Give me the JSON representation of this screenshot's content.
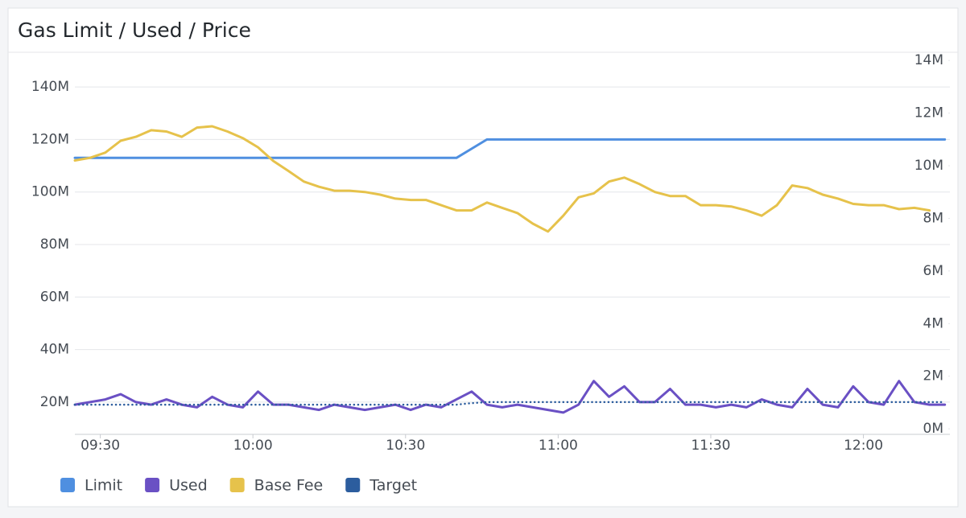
{
  "chart_data": {
    "type": "line",
    "title": "Gas Limit / Used / Price",
    "x": [
      "09:25",
      "09:28",
      "09:31",
      "09:34",
      "09:37",
      "09:40",
      "09:43",
      "09:46",
      "09:49",
      "09:52",
      "09:55",
      "09:58",
      "10:01",
      "10:04",
      "10:07",
      "10:10",
      "10:13",
      "10:16",
      "10:19",
      "10:22",
      "10:25",
      "10:28",
      "10:31",
      "10:34",
      "10:37",
      "10:40",
      "10:43",
      "10:46",
      "10:49",
      "10:52",
      "10:55",
      "10:58",
      "11:01",
      "11:04",
      "11:07",
      "11:10",
      "11:13",
      "11:16",
      "11:19",
      "11:22",
      "11:25",
      "11:28",
      "11:31",
      "11:34",
      "11:37",
      "11:40",
      "11:43",
      "11:46",
      "11:49",
      "11:52",
      "11:55",
      "11:58",
      "12:01",
      "12:04",
      "12:07",
      "12:10",
      "12:13",
      "12:16"
    ],
    "xlim": [
      "09:25",
      "12:17"
    ],
    "xticks": [
      "09:30",
      "10:00",
      "10:30",
      "11:00",
      "11:30",
      "12:00"
    ],
    "ylim": [
      7.7,
      152.3
    ],
    "yticks": [
      {
        "value": 20,
        "label": "20M"
      },
      {
        "value": 40,
        "label": "40M"
      },
      {
        "value": 60,
        "label": "60M"
      },
      {
        "value": 80,
        "label": "80M"
      },
      {
        "value": 100,
        "label": "100M"
      },
      {
        "value": 120,
        "label": "120M"
      },
      {
        "value": 140,
        "label": "140M"
      }
    ],
    "y2lim": [
      -0.21,
      14.22
    ],
    "y2ticks": [
      {
        "value": 0,
        "label": "0M"
      },
      {
        "value": 2,
        "label": "2M"
      },
      {
        "value": 4,
        "label": "4M"
      },
      {
        "value": 6,
        "label": "6M"
      },
      {
        "value": 8,
        "label": "8M"
      },
      {
        "value": 10,
        "label": "10M"
      },
      {
        "value": 12,
        "label": "12M"
      },
      {
        "value": 14,
        "label": "14M"
      }
    ],
    "grid": true,
    "legend": "bottom-left",
    "series": [
      {
        "name": "Limit",
        "color": "#4f8fe0",
        "values": [
          113,
          113,
          113,
          113,
          113,
          113,
          113,
          113,
          113,
          113,
          113,
          113,
          113,
          113,
          113,
          113,
          113,
          113,
          113,
          113,
          113,
          113,
          113,
          113,
          113,
          113,
          116.5,
          120,
          120,
          120,
          120,
          120,
          120,
          120,
          120,
          120,
          120,
          120,
          120,
          120,
          120,
          120,
          120,
          120,
          120,
          120,
          120,
          120,
          120,
          120,
          120,
          120,
          120,
          120,
          120,
          120,
          120,
          120
        ]
      },
      {
        "name": "Used",
        "color": "#6a50c4",
        "values": [
          19,
          20,
          21,
          23,
          20,
          19,
          21,
          19,
          18,
          22,
          19,
          18,
          24,
          19,
          19,
          18,
          17,
          19,
          18,
          17,
          18,
          19,
          17,
          19,
          18,
          21,
          24,
          19,
          18,
          19,
          18,
          17,
          16,
          19,
          28,
          22,
          26,
          20,
          20,
          25,
          19,
          19,
          18,
          19,
          18,
          21,
          19,
          18,
          25,
          19,
          18,
          26,
          20,
          19,
          28,
          20,
          19,
          19
        ]
      },
      {
        "name": "Base Fee",
        "color": "#e6c24b",
        "axis": "y2",
        "values": [
          10.2,
          10.3,
          10.5,
          10.95,
          11.1,
          11.35,
          11.3,
          11.1,
          11.45,
          11.5,
          11.3,
          11.05,
          10.7,
          10.18,
          9.8,
          9.4,
          9.2,
          9.05,
          9.05,
          9.0,
          8.9,
          8.75,
          8.7,
          8.7,
          8.5,
          8.3,
          8.3,
          8.6,
          8.4,
          8.2,
          7.8,
          7.5,
          8.1,
          8.8,
          8.95,
          9.4,
          9.55,
          9.3,
          9.0,
          8.85,
          8.85,
          8.5,
          8.5,
          8.45,
          8.3,
          8.1,
          8.5,
          9.25,
          9.15,
          8.9,
          8.75,
          8.55,
          8.5,
          8.5,
          8.35,
          8.4,
          8.3,
          null
        ]
      },
      {
        "name": "Target",
        "color": "#2c5d9e",
        "style": "dotted",
        "values": [
          19,
          19,
          19,
          19,
          19,
          19,
          19,
          19,
          19,
          19,
          19,
          19,
          19,
          19,
          19,
          19,
          19,
          19,
          19,
          19,
          19,
          19,
          19,
          19,
          19,
          19,
          19.6,
          20,
          20,
          20,
          20,
          20,
          20,
          20,
          20,
          20,
          20,
          20,
          20,
          20,
          20,
          20,
          20,
          20,
          20,
          20,
          20,
          20,
          20,
          20,
          20,
          20,
          20,
          20,
          20,
          20,
          20,
          20
        ]
      }
    ]
  }
}
